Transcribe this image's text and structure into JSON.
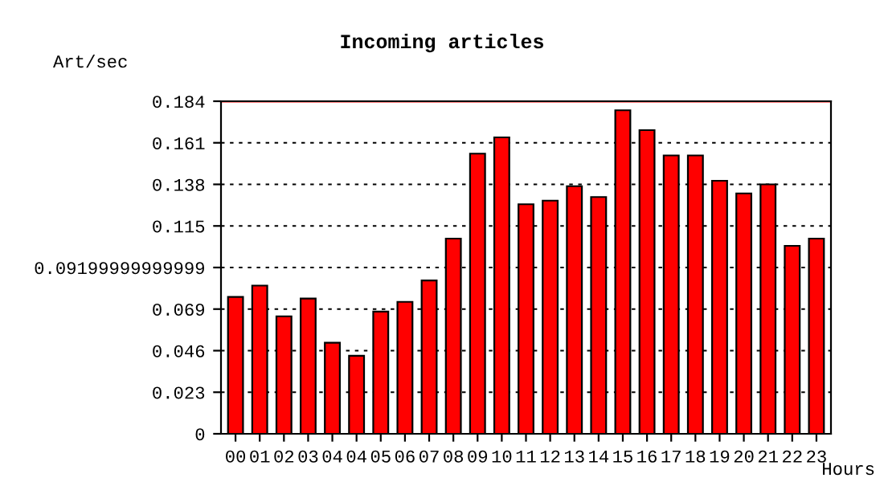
{
  "chart_data": {
    "type": "bar",
    "title": "Incoming articles",
    "ylabel": "Art/sec",
    "xlabel": "Hours",
    "categories": [
      "00",
      "01",
      "02",
      "03",
      "04",
      "04",
      "05",
      "06",
      "07",
      "08",
      "09",
      "10",
      "11",
      "12",
      "13",
      "14",
      "15",
      "16",
      "17",
      "18",
      "19",
      "20",
      "21",
      "22",
      "23"
    ],
    "values": [
      0.0757,
      0.082,
      0.065,
      0.0748,
      0.0504,
      0.0432,
      0.0676,
      0.073,
      0.0848,
      0.108,
      0.155,
      0.164,
      0.127,
      0.129,
      0.137,
      0.131,
      0.179,
      0.168,
      0.154,
      0.154,
      0.14,
      0.133,
      0.138,
      0.104,
      0.108
    ],
    "color": "#ff0000",
    "ylim": [
      0,
      0.184
    ],
    "yticks": [
      0,
      0.023,
      0.046,
      0.069,
      {
        "value": 0.092,
        "label": "0.09199999999999"
      },
      0.115,
      0.138,
      0.161,
      0.184
    ],
    "ref_lines": [
      {
        "axis": "y",
        "value": 0.184,
        "color": "#ff0000"
      }
    ],
    "grid": "y",
    "legend": false
  }
}
